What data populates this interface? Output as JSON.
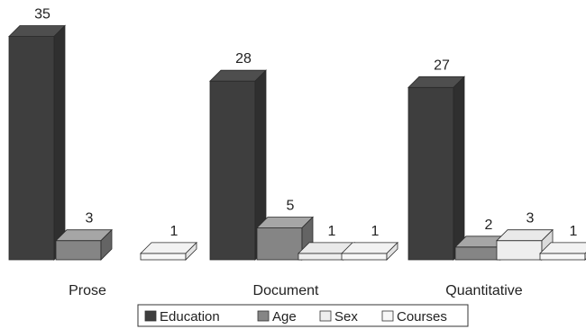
{
  "chart_data": {
    "type": "bar",
    "style": "3d-grouped",
    "categories": [
      "Prose",
      "Document",
      "Quantitative"
    ],
    "series": [
      {
        "name": "Education",
        "values": [
          35,
          28,
          27
        ],
        "color": "#3e3e3e"
      },
      {
        "name": "Age",
        "values": [
          3,
          5,
          2
        ],
        "color": "#858585"
      },
      {
        "name": "Sex",
        "values": [
          null,
          1,
          3
        ],
        "color": "#eeeeee"
      },
      {
        "name": "Courses",
        "values": [
          1,
          1,
          1
        ],
        "color": "#f7f7f7"
      }
    ],
    "title": "",
    "xlabel": "",
    "ylabel": "",
    "ylim": [
      0,
      35
    ],
    "grid": false,
    "legend": "bottom-center"
  }
}
